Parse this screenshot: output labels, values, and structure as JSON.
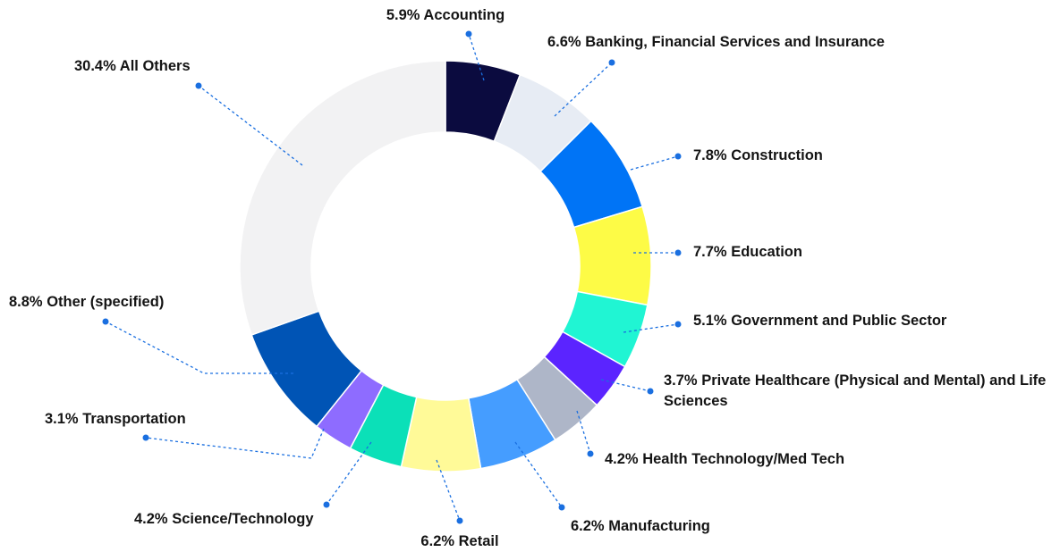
{
  "chart_data": {
    "type": "donut",
    "categories": [
      "Accounting",
      "Banking, Financial Services and Insurance",
      "Construction",
      "Education",
      "Government and Public Sector",
      "Private Healthcare (Physical and Mental) and Life Sciences",
      "Health Technology/Med Tech",
      "Manufacturing",
      "Retail",
      "Science/Technology",
      "Transportation",
      "Other (specified)",
      "All Others"
    ],
    "values": [
      5.9,
      6.6,
      7.8,
      7.7,
      5.1,
      3.7,
      4.2,
      6.2,
      6.2,
      4.2,
      3.1,
      8.8,
      30.4
    ],
    "value_labels": [
      "5.9%",
      "6.6%",
      "7.8%",
      "7.7%",
      "5.1%",
      "3.7%",
      "4.2%",
      "6.2%",
      "6.2%",
      "4.2%",
      "3.1%",
      "8.8%",
      "30.4%"
    ],
    "colors": [
      "#0b0b3f",
      "#e7ecf4",
      "#0074f6",
      "#fdfb46",
      "#20f5d3",
      "#5b24ff",
      "#aeb6c8",
      "#459dff",
      "#fffa98",
      "#0be0b8",
      "#8e6cff",
      "#0054b5",
      "#f2f2f3"
    ]
  }
}
